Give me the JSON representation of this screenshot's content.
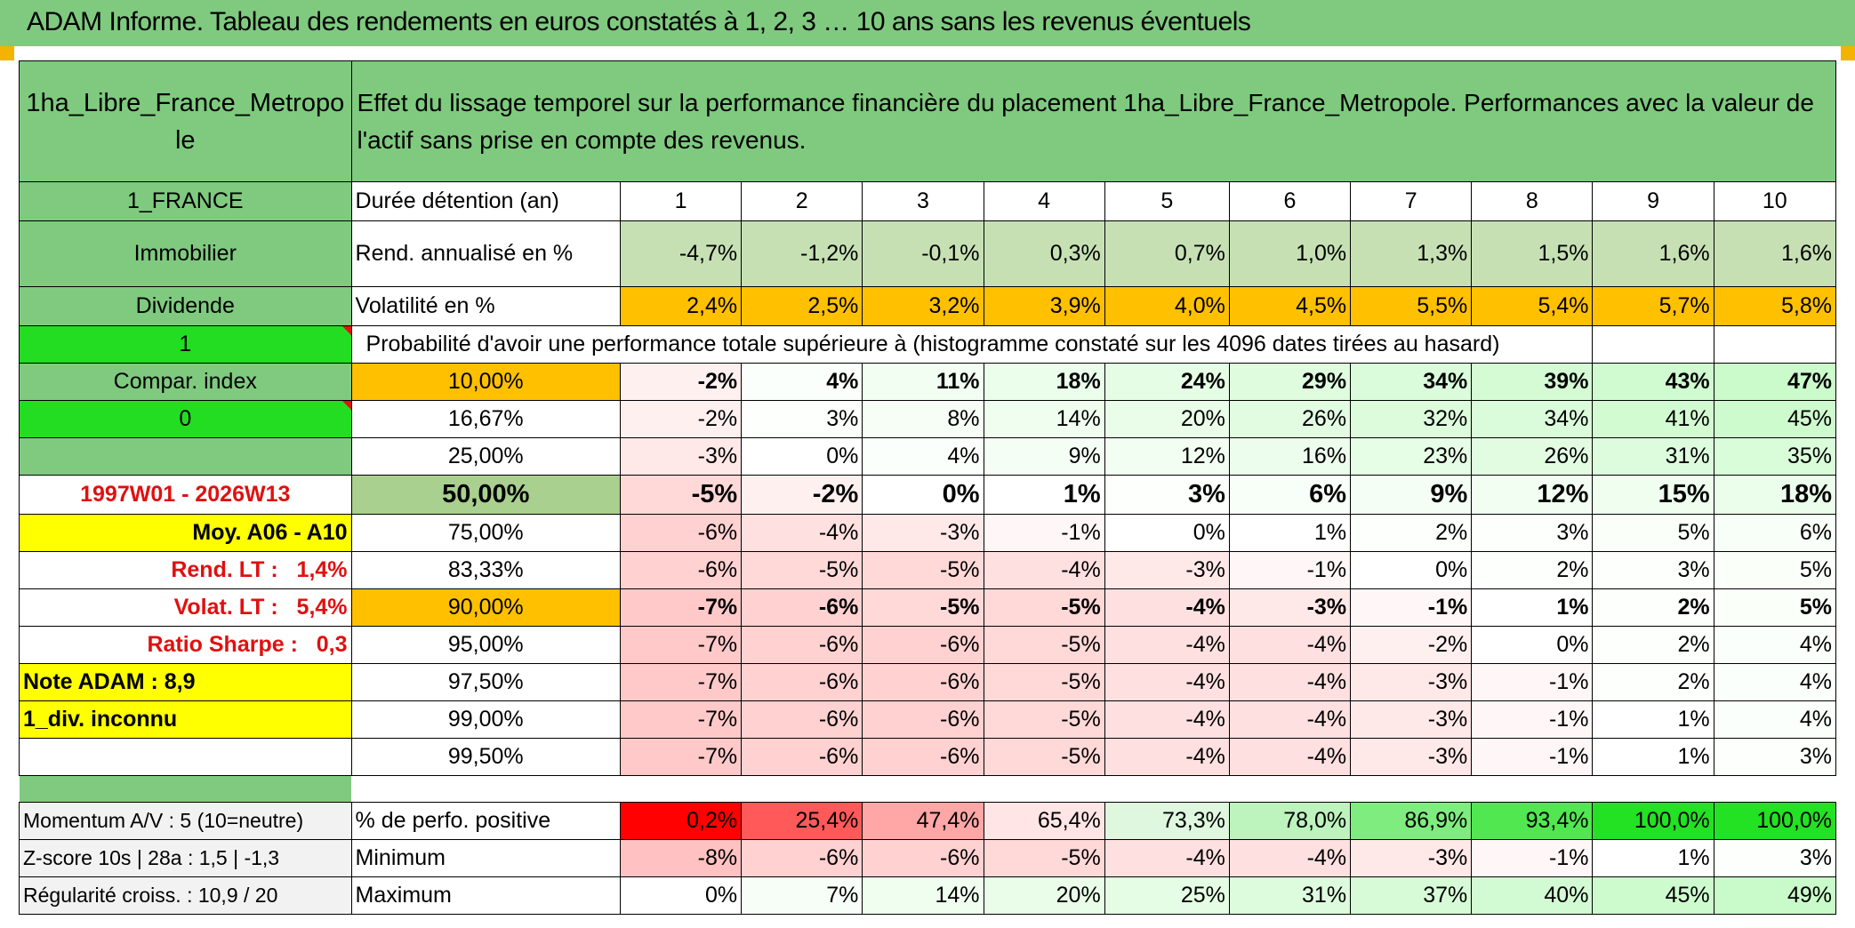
{
  "title": "ADAM Informe. Tableau des rendements en euros constatés à 1, 2, 3 … 10 ans sans les revenus éventuels",
  "header": {
    "asset_name": "1ha_Libre_France_Metropo le",
    "description": "Effet du lissage temporel sur la performance financière du placement 1ha_Libre_France_Metropole. Performances avec la valeur de l'actif sans prise en compte des revenus."
  },
  "left_panel": {
    "country": "1_FRANCE",
    "asset_class": "Immobilier",
    "income_type": "Dividende",
    "flag_1": "1",
    "compar_index": "Compar. index",
    "flag_0": "0",
    "period": "1997W01 - 2026W13",
    "moy": "Moy. A06 - A10",
    "rend_lt_label": "Rend. LT :",
    "rend_lt_value": "1,4%",
    "volat_lt_label": "Volat. LT :",
    "volat_lt_value": "5,4%",
    "sharpe_label": "Ratio Sharpe :",
    "sharpe_value": "0,3",
    "note_adam": "Note ADAM : 8,9",
    "div_inconnu": "1_div. inconnu",
    "momentum": "Momentum A/V : 5 (10=neutre)",
    "zscore": "Z-score 10s | 28a : 1,5 | -1,3",
    "regularite": "Régularité croiss. : 10,9 / 20"
  },
  "main": {
    "duration_label": "Durée détention (an)",
    "years": [
      "1",
      "2",
      "3",
      "4",
      "5",
      "6",
      "7",
      "8",
      "9",
      "10"
    ],
    "rend_label": "Rend. annualisé en %",
    "rend_values": [
      "-4,7%",
      "-1,2%",
      "-0,1%",
      "0,3%",
      "0,7%",
      "1,0%",
      "1,3%",
      "1,5%",
      "1,6%",
      "1,6%"
    ],
    "vol_label": "Volatilité en %",
    "vol_values": [
      "2,4%",
      "2,5%",
      "3,2%",
      "3,9%",
      "4,0%",
      "4,5%",
      "5,5%",
      "5,4%",
      "5,7%",
      "5,8%"
    ],
    "prob_header": "Probabilité d'avoir une performance totale supérieure à (histogramme constaté sur les 4096 dates tirées au hasard)",
    "percentile_rows": [
      {
        "label": "10,00%",
        "values": [
          "-2%",
          "4%",
          "11%",
          "18%",
          "24%",
          "29%",
          "34%",
          "39%",
          "43%",
          "47%"
        ]
      },
      {
        "label": "16,67%",
        "values": [
          "-2%",
          "3%",
          "8%",
          "14%",
          "20%",
          "26%",
          "32%",
          "34%",
          "41%",
          "45%"
        ]
      },
      {
        "label": "25,00%",
        "values": [
          "-3%",
          "0%",
          "4%",
          "9%",
          "12%",
          "16%",
          "23%",
          "26%",
          "31%",
          "35%"
        ]
      },
      {
        "label": "50,00%",
        "values": [
          "-5%",
          "-2%",
          "0%",
          "1%",
          "3%",
          "6%",
          "9%",
          "12%",
          "15%",
          "18%"
        ]
      },
      {
        "label": "75,00%",
        "values": [
          "-6%",
          "-4%",
          "-3%",
          "-1%",
          "0%",
          "1%",
          "2%",
          "3%",
          "5%",
          "6%"
        ]
      },
      {
        "label": "83,33%",
        "values": [
          "-6%",
          "-5%",
          "-5%",
          "-4%",
          "-3%",
          "-1%",
          "0%",
          "2%",
          "3%",
          "5%"
        ]
      },
      {
        "label": "90,00%",
        "values": [
          "-7%",
          "-6%",
          "-5%",
          "-5%",
          "-4%",
          "-3%",
          "-1%",
          "1%",
          "2%",
          "5%"
        ]
      },
      {
        "label": "95,00%",
        "values": [
          "-7%",
          "-6%",
          "-6%",
          "-5%",
          "-4%",
          "-4%",
          "-2%",
          "0%",
          "2%",
          "4%"
        ]
      },
      {
        "label": "97,50%",
        "values": [
          "-7%",
          "-6%",
          "-6%",
          "-5%",
          "-4%",
          "-4%",
          "-3%",
          "-1%",
          "2%",
          "4%"
        ]
      },
      {
        "label": "99,00%",
        "values": [
          "-7%",
          "-6%",
          "-6%",
          "-5%",
          "-4%",
          "-4%",
          "-3%",
          "-1%",
          "1%",
          "4%"
        ]
      },
      {
        "label": "99,50%",
        "values": [
          "-7%",
          "-6%",
          "-6%",
          "-5%",
          "-4%",
          "-4%",
          "-3%",
          "-1%",
          "1%",
          "3%"
        ]
      }
    ],
    "positive_label": "% de perfo. positive",
    "positive_values": [
      "0,2%",
      "25,4%",
      "47,4%",
      "65,4%",
      "73,3%",
      "78,0%",
      "86,9%",
      "93,4%",
      "100,0%",
      "100,0%"
    ],
    "min_label": "Minimum",
    "min_values": [
      "-8%",
      "-6%",
      "-6%",
      "-5%",
      "-4%",
      "-4%",
      "-3%",
      "-1%",
      "1%",
      "3%"
    ],
    "max_label": "Maximum",
    "max_values": [
      "0%",
      "7%",
      "14%",
      "20%",
      "25%",
      "31%",
      "37%",
      "40%",
      "45%",
      "49%"
    ]
  },
  "colors": {
    "header_green": "#7fca7f",
    "bright_green": "#22dd22",
    "yellow": "#ffff00",
    "orange": "#ffc000",
    "light_green": "#c6e0b4",
    "red_text": "#e01010"
  }
}
